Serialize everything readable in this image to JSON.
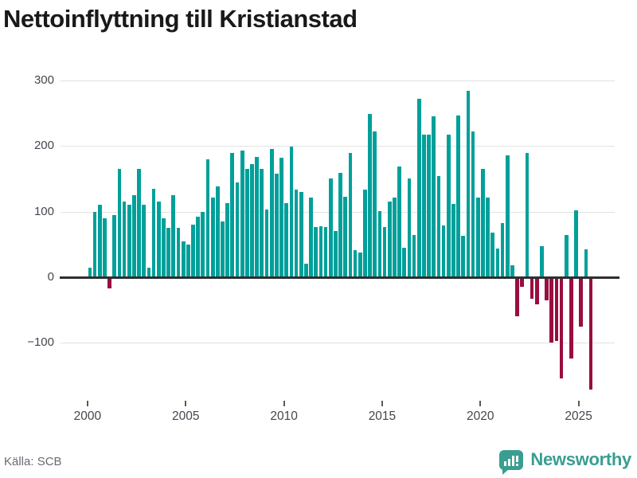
{
  "title": "Nettoinflyttning till Kristianstad",
  "footer": {
    "source": "Källa: SCB",
    "logo_text": "Newsworthy"
  },
  "colors": {
    "positive_bar": "#00a09a",
    "negative_bar": "#990d40",
    "logo": "#399e90",
    "grid": "#e2e2e2",
    "zero_line": "#2f2f2f",
    "axis_text": "#45454f",
    "title_text": "#191919",
    "source_text": "#6a6a75"
  },
  "chart_data": {
    "type": "bar",
    "title": "Nettoinflyttning till Kristianstad",
    "xlabel": "",
    "ylabel": "",
    "frequency": "quarterly",
    "start_period": "2000 Q1",
    "end_period": "2025 Q3",
    "ylim": [
      -190,
      310
    ],
    "grid": true,
    "legend": "none",
    "x_tick_labels": [
      "2000",
      "2005",
      "2010",
      "2015",
      "2020",
      "2025"
    ],
    "y_ticks": [
      {
        "label": "300",
        "value": 300
      },
      {
        "label": "200",
        "value": 200
      },
      {
        "label": "100",
        "value": 100
      },
      {
        "label": "0",
        "value": 0
      },
      {
        "label": "−100",
        "value": -100
      }
    ],
    "values": [
      15,
      100,
      110,
      90,
      -15,
      95,
      165,
      115,
      110,
      125,
      165,
      110,
      15,
      135,
      115,
      90,
      75,
      125,
      75,
      55,
      50,
      80,
      92,
      100,
      180,
      122,
      138,
      85,
      113,
      190,
      145,
      193,
      165,
      173,
      183,
      165,
      103,
      196,
      158,
      182,
      113,
      199,
      134,
      130,
      21,
      122,
      76,
      78,
      77,
      151,
      70,
      159,
      123,
      190,
      41,
      38,
      134,
      249,
      223,
      101,
      77,
      115,
      122,
      169,
      45,
      151,
      64,
      272,
      217,
      217,
      245,
      154,
      79,
      218,
      112,
      247,
      63,
      285,
      223,
      121,
      165,
      121,
      68,
      44,
      83,
      186,
      18,
      -58,
      -13,
      190,
      -31,
      -40,
      47,
      -34,
      -98,
      -95,
      -152,
      64,
      -122,
      102,
      -73,
      42,
      -169
    ]
  }
}
